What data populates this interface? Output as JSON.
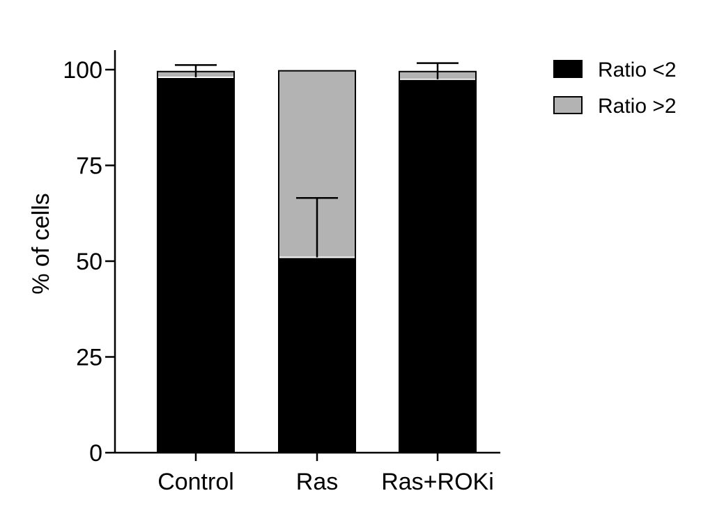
{
  "chart_data": {
    "type": "bar",
    "stacked": true,
    "title": "",
    "xlabel": "",
    "ylabel": "% of cells",
    "ylim": [
      0,
      100
    ],
    "yticks": [
      0,
      25,
      50,
      75,
      100
    ],
    "ytick_labels": [
      "0",
      "25",
      "50",
      "75",
      "100"
    ],
    "categories": [
      "Control",
      "Ras",
      "Ras+ROKi"
    ],
    "series": [
      {
        "name": "Ratio <2",
        "color": "#000000",
        "values": [
          98,
          51,
          97.5
        ]
      },
      {
        "name": "Ratio >2",
        "color": "#b3b3b3",
        "values": [
          1.5,
          48.7,
          2.0
        ]
      }
    ],
    "error_bars": [
      {
        "category": "Control",
        "center": 98,
        "upper": 101.2
      },
      {
        "category": "Ras",
        "center": 51,
        "upper": 66.5
      },
      {
        "category": "Ras+ROKi",
        "center": 97.5,
        "upper": 101.7
      }
    ],
    "legend": {
      "position": "top-right",
      "entries": [
        "Ratio <2",
        "Ratio >2"
      ]
    },
    "grid": false
  }
}
